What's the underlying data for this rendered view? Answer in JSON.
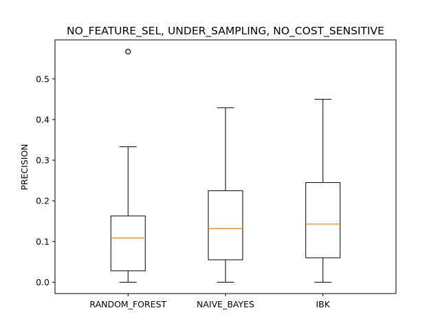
{
  "chart_data": {
    "type": "box",
    "title": "NO_FEATURE_SEL, UNDER_SAMPLING, NO_COST_SENSITIVE",
    "xlabel": "",
    "ylabel": "PRECISION",
    "ylim": [
      -0.028,
      0.596
    ],
    "yticks": [
      0.0,
      0.1,
      0.2,
      0.3,
      0.4,
      0.5
    ],
    "ytick_labels": [
      "0.0",
      "0.1",
      "0.2",
      "0.3",
      "0.4",
      "0.5"
    ],
    "categories": [
      "RANDOM_FOREST",
      "NAIVE_BAYES",
      "IBK"
    ],
    "boxes": [
      {
        "whisker_low": 0.0,
        "q1": 0.028,
        "median": 0.109,
        "q3": 0.163,
        "whisker_high": 0.333,
        "fliers": [
          0.567
        ]
      },
      {
        "whisker_low": 0.0,
        "q1": 0.055,
        "median": 0.132,
        "q3": 0.225,
        "whisker_high": 0.429,
        "fliers": []
      },
      {
        "whisker_low": 0.0,
        "q1": 0.06,
        "median": 0.143,
        "q3": 0.245,
        "whisker_high": 0.45,
        "fliers": []
      }
    ],
    "grid": false,
    "colors": {
      "box": "#000000",
      "median": "#ff7f0e",
      "flier": "#000000"
    }
  }
}
